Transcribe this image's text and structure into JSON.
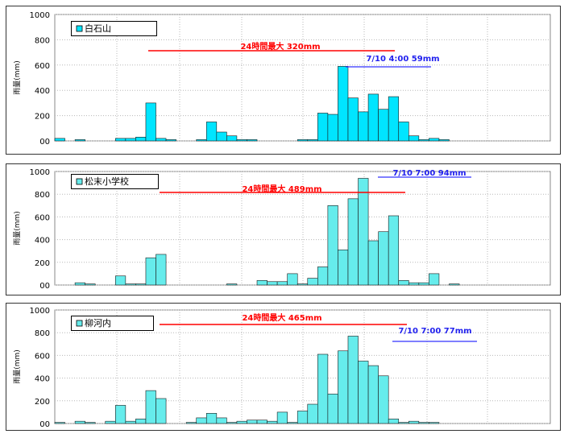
{
  "chart_data": [
    {
      "type": "bar",
      "legend": "白石山",
      "ylabel": "雨量(mm)",
      "yticks": [
        "1000",
        "800",
        "600",
        "400",
        "200",
        "00"
      ],
      "ylim": [
        0,
        1000
      ],
      "bar_color": "#00e5ff",
      "max_label": "24時間最大 320mm",
      "peak_label": "7/10 4:00 59mm",
      "values": [
        20,
        0,
        10,
        0,
        0,
        0,
        20,
        20,
        30,
        300,
        20,
        10,
        0,
        0,
        10,
        150,
        70,
        40,
        10,
        10,
        0,
        0,
        0,
        0,
        10,
        10,
        220,
        210,
        590,
        340,
        230,
        370,
        250,
        350,
        150,
        40,
        10,
        20,
        10,
        0,
        0,
        0,
        0,
        0,
        0,
        0,
        0,
        0,
        0
      ]
    },
    {
      "type": "bar",
      "legend": "松末小学校",
      "ylabel": "雨量(mm)",
      "yticks": [
        "1000",
        "800",
        "600",
        "400",
        "200",
        "00"
      ],
      "ylim": [
        0,
        1000
      ],
      "bar_color": "#66ecec",
      "max_label": "24時間最大 489mm",
      "peak_label": "7/10 7:00 94mm",
      "values": [
        0,
        0,
        20,
        10,
        0,
        0,
        80,
        10,
        10,
        240,
        270,
        0,
        0,
        0,
        0,
        0,
        0,
        10,
        0,
        0,
        40,
        30,
        30,
        100,
        10,
        60,
        160,
        700,
        310,
        760,
        940,
        390,
        470,
        610,
        40,
        20,
        20,
        100,
        0,
        10,
        0,
        0,
        0,
        0,
        0,
        0,
        0,
        0,
        0
      ]
    },
    {
      "type": "bar",
      "legend": "柳河内",
      "ylabel": "雨量(mm)",
      "yticks": [
        "1000",
        "800",
        "600",
        "400",
        "200",
        "00"
      ],
      "ylim": [
        0,
        1000
      ],
      "bar_color": "#66ecec",
      "max_label": "24時間最大 465mm",
      "peak_label": "7/10 7:00 77mm",
      "values": [
        10,
        0,
        20,
        10,
        0,
        20,
        160,
        20,
        40,
        290,
        220,
        0,
        0,
        10,
        50,
        90,
        50,
        10,
        20,
        30,
        30,
        20,
        100,
        10,
        110,
        170,
        610,
        260,
        640,
        770,
        550,
        510,
        420,
        40,
        10,
        20,
        10,
        10,
        0,
        0,
        0,
        0,
        0,
        0,
        0,
        0,
        0,
        0,
        0
      ]
    }
  ]
}
